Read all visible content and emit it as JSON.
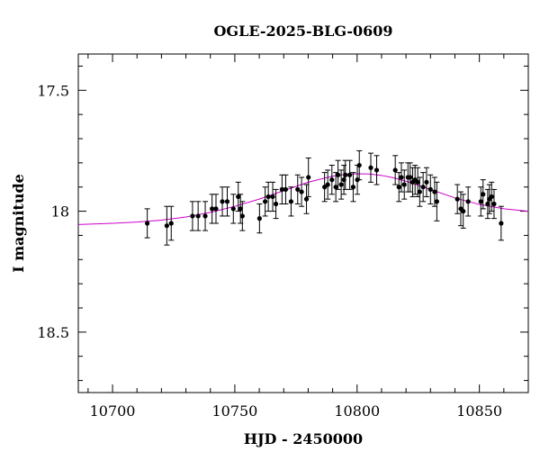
{
  "chart_data": {
    "type": "scatter",
    "title": "OGLE-2025-BLG-0609",
    "xlabel": "HJD - 2450000",
    "ylabel": "I magnitude",
    "xlim": [
      10686,
      10870
    ],
    "ylim": [
      18.75,
      17.35
    ],
    "y_inverted": true,
    "xticks": [
      10700,
      10750,
      10800,
      10850
    ],
    "xtick_labels": [
      "10700",
      "10750",
      "10800",
      "10850"
    ],
    "yticks": [
      17.5,
      18,
      18.5
    ],
    "ytick_labels": [
      "17.5",
      "18",
      "18.5"
    ],
    "grid": false,
    "legend": "none",
    "colors": {
      "points": "#000000",
      "model": "#cc00cc",
      "frame": "#000000"
    },
    "series": [
      {
        "kind": "points_with_errorbars",
        "x": [
          10714.2,
          10722.2,
          10724.0,
          10732.7,
          10735.0,
          10737.9,
          10740.7,
          10742.3,
          10744.9,
          10746.9,
          10749.4,
          10751.4,
          10752.3,
          10753.1,
          10760.1,
          10762.4,
          10763.7,
          10765.5,
          10766.8,
          10769.3,
          10770.8,
          10773.0,
          10775.7,
          10777.3,
          10779.3,
          10780.1,
          10786.7,
          10788.0,
          10789.7,
          10791.3,
          10792.2,
          10793.5,
          10794.6,
          10795.2,
          10797.0,
          10798.4,
          10800.1,
          10800.9,
          10805.6,
          10808.0,
          10815.6,
          10817.1,
          10818.1,
          10819.3,
          10820.8,
          10821.7,
          10822.7,
          10823.7,
          10824.8,
          10825.6,
          10827.0,
          10828.4,
          10830.0,
          10831.7,
          10832.6,
          10841.0,
          10842.4,
          10843.4,
          10845.4,
          10850.6,
          10851.5,
          10853.4,
          10854.1,
          10855.0,
          10856.0,
          10858.9
        ],
        "y": [
          18.05,
          18.06,
          18.05,
          18.02,
          18.02,
          18.02,
          17.99,
          17.99,
          17.96,
          17.96,
          17.99,
          17.94,
          17.99,
          18.02,
          18.03,
          17.96,
          17.94,
          17.94,
          17.97,
          17.91,
          17.91,
          17.96,
          17.91,
          17.92,
          17.95,
          17.86,
          17.9,
          17.89,
          17.87,
          17.9,
          17.85,
          17.89,
          17.87,
          17.85,
          17.85,
          17.9,
          17.87,
          17.81,
          17.82,
          17.83,
          17.83,
          17.9,
          17.86,
          17.89,
          17.86,
          17.86,
          17.88,
          17.87,
          17.88,
          17.92,
          17.9,
          17.88,
          17.91,
          17.92,
          17.96,
          17.95,
          17.99,
          18.0,
          17.96,
          17.96,
          17.93,
          17.97,
          17.95,
          17.94,
          17.97,
          18.05
        ],
        "err": [
          0.06,
          0.08,
          0.07,
          0.06,
          0.06,
          0.06,
          0.06,
          0.06,
          0.06,
          0.06,
          0.06,
          0.06,
          0.06,
          0.06,
          0.06,
          0.06,
          0.06,
          0.06,
          0.06,
          0.06,
          0.06,
          0.06,
          0.06,
          0.06,
          0.06,
          0.08,
          0.06,
          0.06,
          0.06,
          0.06,
          0.06,
          0.06,
          0.06,
          0.06,
          0.06,
          0.06,
          0.06,
          0.06,
          0.06,
          0.06,
          0.06,
          0.06,
          0.06,
          0.06,
          0.06,
          0.06,
          0.06,
          0.06,
          0.06,
          0.06,
          0.06,
          0.06,
          0.06,
          0.06,
          0.08,
          0.06,
          0.07,
          0.07,
          0.06,
          0.06,
          0.06,
          0.06,
          0.06,
          0.06,
          0.06,
          0.07
        ]
      },
      {
        "kind": "model_curve",
        "x": [
          10686,
          10700,
          10710,
          10720,
          10730,
          10740,
          10750,
          10760,
          10770,
          10780,
          10790,
          10795,
          10800,
          10805,
          10810,
          10815,
          10820,
          10830,
          10840,
          10850,
          10860,
          10870
        ],
        "y": [
          18.055,
          18.05,
          18.045,
          18.037,
          18.024,
          18.005,
          17.98,
          17.95,
          17.915,
          17.88,
          17.855,
          17.848,
          17.845,
          17.846,
          17.852,
          17.862,
          17.876,
          17.91,
          17.945,
          17.972,
          17.99,
          18.0
        ]
      }
    ]
  }
}
